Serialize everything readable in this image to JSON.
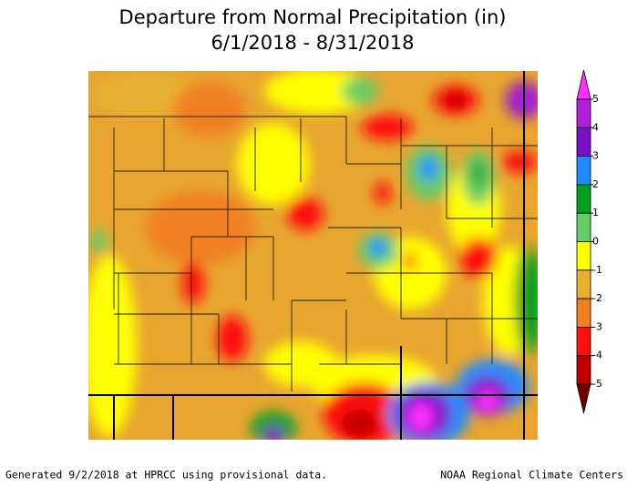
{
  "title": {
    "line1": "Departure from Normal Precipitation (in)",
    "line2": "6/1/2018 - 8/31/2018"
  },
  "legend": {
    "ticks": [
      5,
      4,
      3,
      2,
      1,
      0,
      -1,
      -2,
      -3,
      -4,
      -5
    ],
    "colors": [
      "#ff30ff",
      "#b020d8",
      "#7a10c8",
      "#1e8cff",
      "#00a020",
      "#66cc66",
      "#ffff00",
      "#e8b030",
      "#f08020",
      "#ff1010",
      "#c00000",
      "#700000"
    ]
  },
  "footer": {
    "left": "Generated 9/2/2018 at HPRCC using provisional data.",
    "right": "NOAA Regional Climate Centers"
  }
}
